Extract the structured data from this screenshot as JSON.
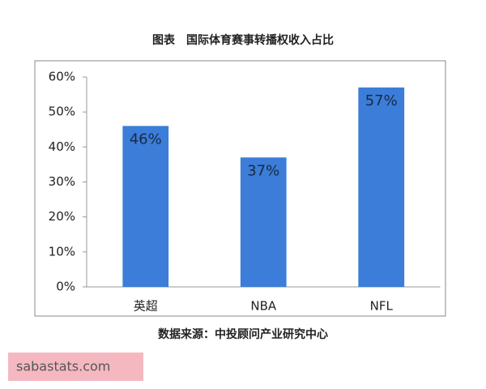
{
  "chart_data": {
    "type": "bar",
    "title": "图表　国际体育赛事转播权收入占比",
    "categories": [
      "英超",
      "NBA",
      "NFL"
    ],
    "values": [
      46,
      37,
      57
    ],
    "value_labels": [
      "46%",
      "37%",
      "57%"
    ],
    "color": "#3b7dd8",
    "ylim": [
      0,
      60
    ],
    "yticks": [
      {
        "value": 0,
        "label": "0%"
      },
      {
        "value": 10,
        "label": "10%"
      },
      {
        "value": 20,
        "label": "20%"
      },
      {
        "value": 30,
        "label": "30%"
      },
      {
        "value": 40,
        "label": "40%"
      },
      {
        "value": 50,
        "label": "50%"
      },
      {
        "value": 60,
        "label": "60%"
      }
    ],
    "grid": false,
    "source": "数据来源：中投顾问产业研究中心",
    "watermark": "sabastats.com"
  }
}
